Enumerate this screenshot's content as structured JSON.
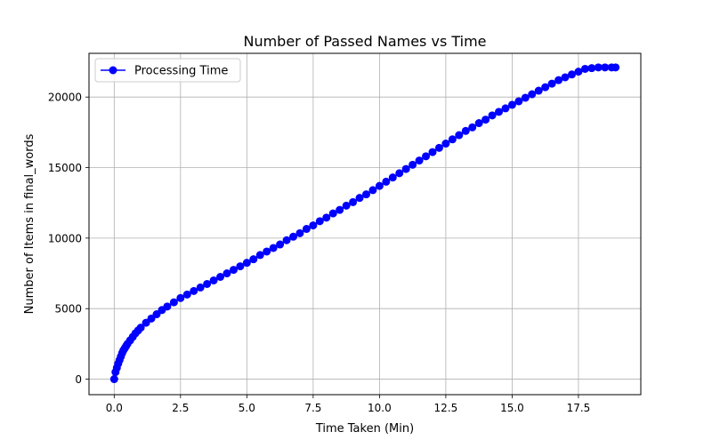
{
  "chart_data": {
    "type": "line",
    "title": "Number of Passed Names vs Time",
    "xlabel": "Time Taken (Min)",
    "ylabel": "Number of Items in final_words",
    "xlim": [
      -0.95,
      19.85
    ],
    "ylim": [
      -1100,
      23100
    ],
    "x_ticks": [
      0.0,
      2.5,
      5.0,
      7.5,
      10.0,
      12.5,
      15.0,
      17.5
    ],
    "x_tick_labels": [
      "0.0",
      "2.5",
      "5.0",
      "7.5",
      "10.0",
      "12.5",
      "15.0",
      "17.5"
    ],
    "y_ticks": [
      0,
      5000,
      10000,
      15000,
      20000
    ],
    "y_tick_labels": [
      "0",
      "5000",
      "10000",
      "15000",
      "20000"
    ],
    "grid": true,
    "legend_position": "upper-left",
    "series": [
      {
        "name": "Processing Time",
        "color": "#0000ff",
        "marker": "circle",
        "x": [
          0.0,
          0.05,
          0.1,
          0.15,
          0.2,
          0.25,
          0.3,
          0.35,
          0.4,
          0.45,
          0.5,
          0.6,
          0.7,
          0.8,
          0.9,
          1.0,
          1.2,
          1.4,
          1.6,
          1.8,
          2.0,
          2.25,
          2.5,
          2.75,
          3.0,
          3.25,
          3.5,
          3.75,
          4.0,
          4.25,
          4.5,
          4.75,
          5.0,
          5.25,
          5.5,
          5.75,
          6.0,
          6.25,
          6.5,
          6.75,
          7.0,
          7.25,
          7.5,
          7.75,
          8.0,
          8.25,
          8.5,
          8.75,
          9.0,
          9.25,
          9.5,
          9.75,
          10.0,
          10.25,
          10.5,
          10.75,
          11.0,
          11.25,
          11.5,
          11.75,
          12.0,
          12.25,
          12.5,
          12.75,
          13.0,
          13.25,
          13.5,
          13.75,
          14.0,
          14.25,
          14.5,
          14.75,
          15.0,
          15.25,
          15.5,
          15.75,
          16.0,
          16.25,
          16.5,
          16.75,
          17.0,
          17.25,
          17.5,
          17.75,
          18.0,
          18.25,
          18.5,
          18.75,
          18.9
        ],
        "values": [
          0,
          500,
          800,
          1100,
          1350,
          1600,
          1850,
          2050,
          2200,
          2350,
          2500,
          2750,
          3000,
          3250,
          3450,
          3650,
          4000,
          4300,
          4600,
          4900,
          5150,
          5450,
          5750,
          6000,
          6250,
          6500,
          6750,
          7000,
          7250,
          7500,
          7750,
          8000,
          8250,
          8500,
          8800,
          9050,
          9300,
          9550,
          9850,
          10100,
          10350,
          10650,
          10900,
          11200,
          11450,
          11750,
          12000,
          12300,
          12550,
          12850,
          13100,
          13400,
          13700,
          14000,
          14300,
          14600,
          14900,
          15200,
          15500,
          15800,
          16100,
          16400,
          16700,
          17000,
          17300,
          17600,
          17850,
          18150,
          18400,
          18700,
          18950,
          19200,
          19450,
          19700,
          19950,
          20200,
          20450,
          20700,
          20950,
          21200,
          21400,
          21600,
          21800,
          22000,
          22050,
          22100,
          22100,
          22100,
          22100
        ]
      }
    ]
  }
}
